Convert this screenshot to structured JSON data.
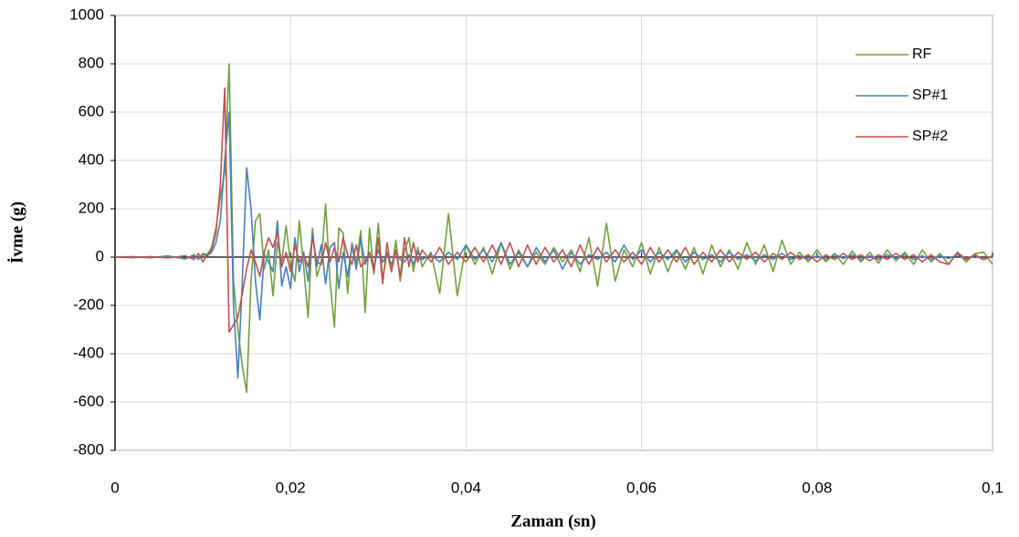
{
  "chart_data": {
    "type": "line",
    "x_label": "Zaman (sn)",
    "y_label": "İvme (g)",
    "x": [
      0,
      0.002,
      0.004,
      0.006,
      0.008,
      0.009,
      0.0095,
      0.01,
      0.0105,
      0.011,
      0.0115,
      0.012,
      0.0125,
      0.013,
      0.0135,
      0.014,
      0.0145,
      0.015,
      0.0155,
      0.016,
      0.0165,
      0.017,
      0.0175,
      0.018,
      0.0185,
      0.019,
      0.0195,
      0.02,
      0.0205,
      0.021,
      0.0215,
      0.022,
      0.0225,
      0.023,
      0.0235,
      0.024,
      0.0245,
      0.025,
      0.0255,
      0.026,
      0.0265,
      0.027,
      0.0275,
      0.028,
      0.0285,
      0.029,
      0.0295,
      0.03,
      0.0305,
      0.031,
      0.0315,
      0.032,
      0.0325,
      0.033,
      0.0335,
      0.034,
      0.0345,
      0.035,
      0.036,
      0.037,
      0.038,
      0.039,
      0.04,
      0.041,
      0.042,
      0.043,
      0.044,
      0.045,
      0.046,
      0.047,
      0.048,
      0.049,
      0.05,
      0.051,
      0.052,
      0.053,
      0.054,
      0.055,
      0.056,
      0.057,
      0.058,
      0.059,
      0.06,
      0.061,
      0.062,
      0.063,
      0.064,
      0.065,
      0.066,
      0.067,
      0.068,
      0.069,
      0.07,
      0.071,
      0.072,
      0.073,
      0.074,
      0.075,
      0.076,
      0.077,
      0.078,
      0.079,
      0.08,
      0.081,
      0.082,
      0.083,
      0.084,
      0.085,
      0.086,
      0.087,
      0.088,
      0.089,
      0.09,
      0.091,
      0.092,
      0.093,
      0.094,
      0.095,
      0.096,
      0.097,
      0.098,
      0.099,
      0.1
    ],
    "series": [
      {
        "name": "RF",
        "color": "#70a03c",
        "values": [
          0,
          2,
          -3,
          5,
          -8,
          10,
          -10,
          15,
          10,
          40,
          120,
          250,
          350,
          800,
          -100,
          -300,
          -450,
          -560,
          -100,
          150,
          180,
          -50,
          30,
          -160,
          60,
          -20,
          130,
          -30,
          -100,
          150,
          -40,
          -250,
          120,
          -80,
          -20,
          220,
          -100,
          -290,
          120,
          100,
          -150,
          60,
          -30,
          110,
          -230,
          120,
          -70,
          140,
          -90,
          20,
          -60,
          70,
          -100,
          30,
          80,
          -60,
          40,
          -40,
          20,
          -150,
          180,
          -160,
          50,
          -30,
          40,
          -70,
          60,
          -50,
          30,
          -40,
          20,
          -30,
          40,
          -20,
          30,
          -60,
          80,
          -120,
          140,
          -100,
          30,
          -40,
          60,
          -70,
          40,
          -60,
          30,
          -50,
          40,
          -70,
          50,
          -40,
          30,
          -50,
          60,
          -30,
          50,
          -60,
          70,
          -30,
          20,
          -20,
          30,
          -20,
          15,
          -30,
          25,
          -20,
          20,
          -25,
          30,
          -15,
          20,
          -30,
          30,
          -20,
          15,
          -30,
          20,
          -20,
          15,
          20,
          -30
        ]
      },
      {
        "name": "SP#1",
        "color": "#4a7ebb",
        "values": [
          0,
          1,
          -2,
          3,
          -5,
          5,
          -5,
          10,
          5,
          20,
          60,
          150,
          400,
          600,
          -200,
          -500,
          -100,
          370,
          200,
          -100,
          -260,
          10,
          -20,
          -60,
          150,
          -120,
          -40,
          -130,
          80,
          -60,
          20,
          -100,
          100,
          -40,
          50,
          -110,
          40,
          60,
          -130,
          20,
          -80,
          50,
          -50,
          80,
          -30,
          20,
          -40,
          30,
          -20,
          10,
          -30,
          20,
          -10,
          -20,
          10,
          -30,
          20,
          -10,
          10,
          -20,
          20,
          -10,
          50,
          -10,
          30,
          -20,
          60,
          -30,
          20,
          -40,
          40,
          -20,
          30,
          -50,
          20,
          -30,
          10,
          -10,
          20,
          -20,
          50,
          -10,
          30,
          -20,
          20,
          -10,
          30,
          -20,
          20,
          -10,
          10,
          -20,
          20,
          -10,
          10,
          -15,
          10,
          -10,
          15,
          -10,
          5,
          -10,
          5,
          -10,
          10,
          -5,
          10,
          -10,
          5,
          -10,
          10,
          -5,
          10,
          -10,
          5,
          -10,
          5,
          -5,
          10,
          -5,
          5,
          -10,
          5
        ]
      },
      {
        "name": "SP#2",
        "color": "#c0504d",
        "values": [
          0,
          -2,
          2,
          -3,
          5,
          -10,
          15,
          -20,
          10,
          30,
          100,
          300,
          700,
          -310,
          -280,
          -250,
          -150,
          -50,
          30,
          -20,
          -80,
          20,
          80,
          40,
          100,
          -40,
          20,
          -60,
          50,
          -20,
          10,
          -40,
          80,
          -20,
          -30,
          60,
          -20,
          40,
          -20,
          80,
          10,
          -30,
          50,
          -40,
          -20,
          20,
          -60,
          80,
          -110,
          60,
          -60,
          30,
          -80,
          80,
          -40,
          60,
          -20,
          30,
          -20,
          40,
          -30,
          20,
          -20,
          40,
          -20,
          50,
          -30,
          60,
          -40,
          50,
          -30,
          40,
          -20,
          30,
          -40,
          50,
          -30,
          40,
          -20,
          30,
          -20,
          20,
          -30,
          40,
          -20,
          30,
          -20,
          40,
          -30,
          20,
          -20,
          30,
          -20,
          20,
          -10,
          20,
          -20,
          15,
          -10,
          20,
          -10,
          10,
          -20,
          10,
          -10,
          15,
          -10,
          10,
          -15,
          10,
          -10,
          15,
          -10,
          10,
          -20,
          10,
          -20,
          -30,
          20,
          -10,
          10,
          -10,
          5
        ]
      }
    ],
    "xlim": [
      0,
      0.1
    ],
    "xticks": [
      0,
      {
        "value": 0.02,
        "label": "0,02"
      },
      {
        "value": 0.04,
        "label": "0,04"
      },
      {
        "value": 0.06,
        "label": "0,06"
      },
      {
        "value": 0.08,
        "label": "0,08"
      },
      {
        "value": 0.1,
        "label": "0,1"
      }
    ],
    "ylim": [
      -800,
      1000
    ],
    "yticks": [
      -800,
      -600,
      -400,
      -200,
      0,
      200,
      400,
      600,
      800,
      1000
    ],
    "grid": true,
    "legend": "top-right"
  }
}
